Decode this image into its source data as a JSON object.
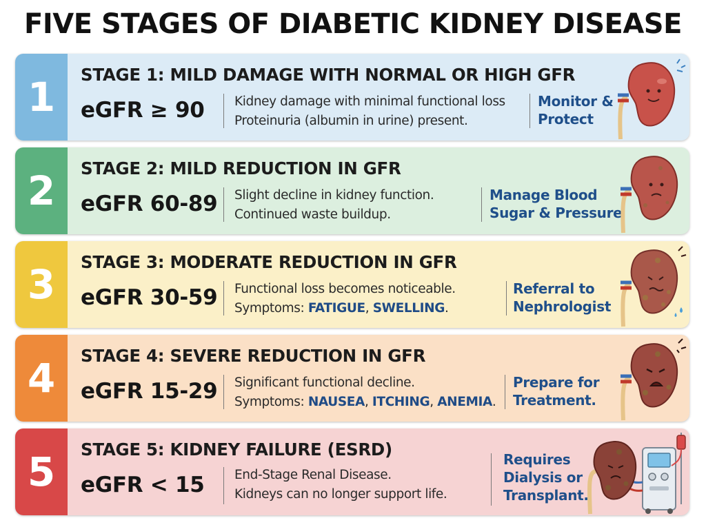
{
  "title": "FIVE STAGES OF DIABETIC KIDNEY DISEASE",
  "stages": [
    {
      "number": "1",
      "heading": "STAGE 1: MILD DAMAGE WITH NORMAL OR HIGH GFR",
      "egfr": "eGFR ≥ 90",
      "line1": "Kidney damage with minimal functional loss",
      "line2": "Proteinuria (albumin in urine) present.",
      "action1": "Monitor &",
      "action2": "Protect",
      "accent": "#7fb9df",
      "background": "#dcebf6"
    },
    {
      "number": "2",
      "heading": "STAGE 2: MILD REDUCTION IN GFR",
      "egfr": "eGFR 60-89",
      "line1": "Slight decline in kidney function.",
      "line2": "Continued waste buildup.",
      "action1": "Manage Blood",
      "action2": "Sugar & Pressure",
      "accent": "#5cb17f",
      "background": "#dcefdf"
    },
    {
      "number": "3",
      "heading": "STAGE 3: MODERATE REDUCTION IN GFR",
      "egfr": "eGFR 30-59",
      "line1": "Functional loss becomes noticeable.",
      "line2_prefix": "Symptoms: ",
      "line2_s1": "FATIGUE",
      "line2_sep1": ", ",
      "line2_s2": "SWELLING",
      "line2_end": ".",
      "action1": "Referral to",
      "action2": "Nephrologist",
      "accent": "#efc83e",
      "background": "#fbf0c8"
    },
    {
      "number": "4",
      "heading": "STAGE 4: SEVERE REDUCTION IN GFR",
      "egfr": "eGFR 15-29",
      "line1": "Significant functional decline.",
      "line2_prefix": "Symptoms: ",
      "line2_s1": "NAUSEA",
      "line2_sep1": ", ",
      "line2_s2": "ITCHING",
      "line2_sep2": ", ",
      "line2_s3": "ANEMIA",
      "line2_end": ".",
      "action1": "Prepare for",
      "action2": "Treatment.",
      "accent": "#ee8a3a",
      "background": "#fbe0c6"
    },
    {
      "number": "5",
      "heading": "STAGE 5: KIDNEY FAILURE (ESRD)",
      "egfr": "eGFR < 15",
      "line1": "End-Stage Renal Disease.",
      "line2": "Kidneys can no longer support life.",
      "action1": "Requires",
      "action2": "Dialysis or",
      "action3": "Transplant.",
      "accent": "#d84848",
      "background": "#f6d3d3"
    }
  ]
}
